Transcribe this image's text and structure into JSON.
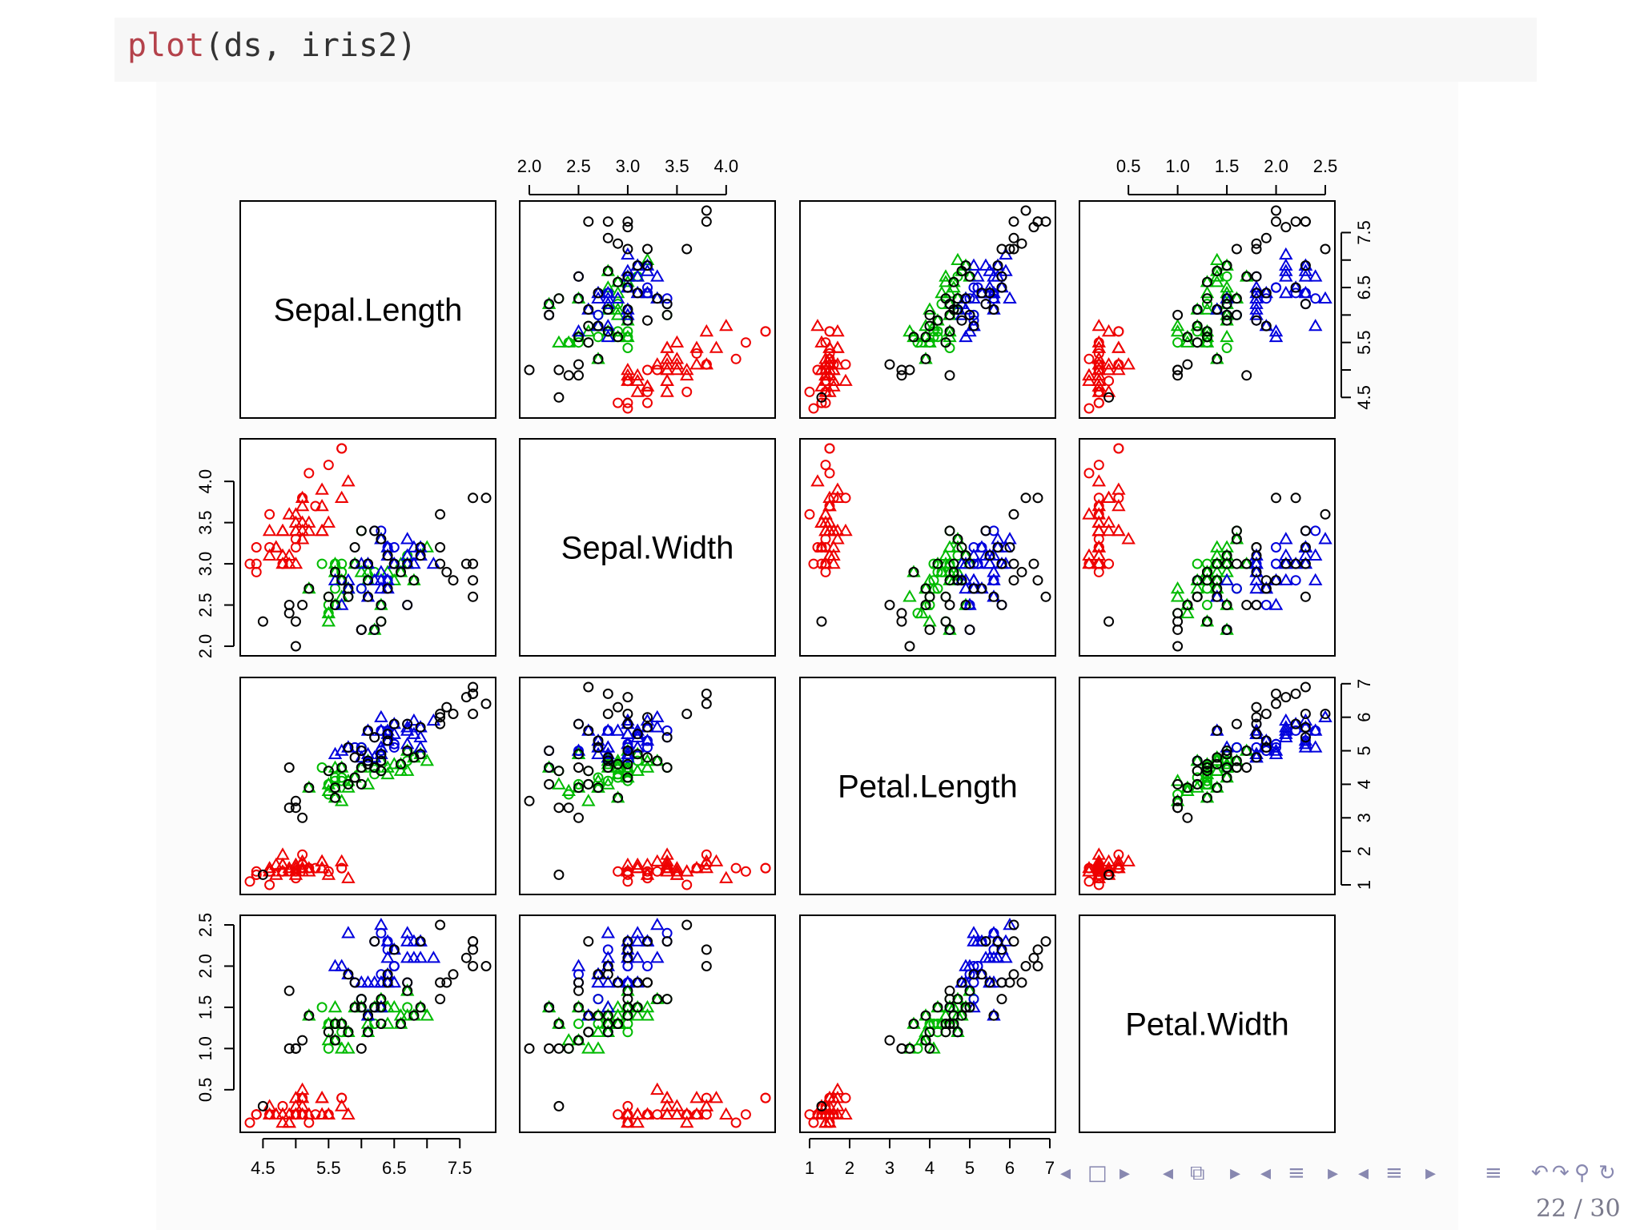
{
  "code": {
    "function": "plot",
    "args": "(ds, iris2)"
  },
  "colors": {
    "black": "#000000",
    "red": "#ee0000",
    "green": "#00bb00",
    "blue": "#0000dd"
  },
  "footer": {
    "page": "22 / 30",
    "nav": [
      "◂",
      "□",
      "▸",
      "◂",
      "⧉",
      "▸",
      "◂",
      "≡",
      "▸",
      "◂",
      "≡",
      "▸",
      "≡",
      "↶",
      "↷",
      "⚲",
      "↻"
    ]
  },
  "chart_data": {
    "type": "scatter",
    "variables": [
      "Sepal.Length",
      "Sepal.Width",
      "Petal.Length",
      "Petal.Width"
    ],
    "ranges": {
      "Sepal.Length": [
        4.3,
        7.9
      ],
      "Sepal.Width": [
        2.0,
        4.4
      ],
      "Petal.Length": [
        1.0,
        6.9
      ],
      "Petal.Width": [
        0.1,
        2.5
      ]
    },
    "ticks": {
      "Sepal.Length": [
        "4.5",
        "5.5",
        "6.5",
        "7.5"
      ],
      "Sepal.Width": [
        "2.0",
        "2.5",
        "3.0",
        "3.5",
        "4.0"
      ],
      "Petal.Length": [
        "1",
        "2",
        "3",
        "4",
        "5",
        "6",
        "7"
      ],
      "Petal.Width": [
        "0.5",
        "1.0",
        "1.5",
        "2.0",
        "2.5"
      ]
    },
    "ticks_at": {
      "Sepal.Length": [
        4.5,
        5.0,
        5.5,
        6.0,
        6.5,
        7.0,
        7.5
      ],
      "Sepal.Width": [
        2.0,
        2.5,
        3.0,
        3.5,
        4.0
      ],
      "Petal.Length": [
        1,
        2,
        3,
        4,
        5,
        6,
        7
      ],
      "Petal.Width": [
        0.5,
        1.0,
        1.5,
        2.0,
        2.5
      ]
    },
    "groups": [
      {
        "color": "#ee0000",
        "pch": "triangle",
        "points": [
          [
            5.1,
            3.5,
            1.4,
            0.2
          ],
          [
            4.9,
            3.0,
            1.4,
            0.2
          ],
          [
            4.7,
            3.2,
            1.3,
            0.2
          ],
          [
            4.6,
            3.1,
            1.5,
            0.2
          ],
          [
            5.0,
            3.6,
            1.4,
            0.2
          ],
          [
            5.4,
            3.9,
            1.7,
            0.4
          ],
          [
            4.6,
            3.4,
            1.4,
            0.3
          ],
          [
            5.0,
            3.4,
            1.5,
            0.2
          ],
          [
            4.9,
            3.1,
            1.5,
            0.1
          ],
          [
            5.4,
            3.7,
            1.5,
            0.2
          ],
          [
            4.8,
            3.4,
            1.6,
            0.2
          ],
          [
            4.8,
            3.0,
            1.4,
            0.1
          ],
          [
            5.8,
            4.0,
            1.2,
            0.2
          ],
          [
            5.7,
            3.8,
            1.7,
            0.3
          ],
          [
            5.1,
            3.8,
            1.5,
            0.3
          ],
          [
            5.4,
            3.4,
            1.7,
            0.2
          ],
          [
            5.1,
            3.7,
            1.5,
            0.4
          ],
          [
            5.1,
            3.3,
            1.7,
            0.5
          ],
          [
            4.8,
            3.4,
            1.9,
            0.2
          ],
          [
            5.0,
            3.0,
            1.6,
            0.2
          ],
          [
            5.0,
            3.4,
            1.6,
            0.4
          ],
          [
            5.2,
            3.5,
            1.5,
            0.2
          ],
          [
            5.2,
            3.4,
            1.4,
            0.2
          ],
          [
            4.7,
            3.2,
            1.6,
            0.2
          ],
          [
            4.8,
            3.1,
            1.6,
            0.2
          ],
          [
            5.4,
            3.4,
            1.5,
            0.4
          ],
          [
            5.5,
            3.5,
            1.3,
            0.2
          ],
          [
            4.9,
            3.6,
            1.4,
            0.1
          ],
          [
            5.1,
            3.4,
            1.5,
            0.2
          ],
          [
            5.0,
            3.5,
            1.3,
            0.3
          ]
        ]
      },
      {
        "color": "#ee0000",
        "pch": "circle",
        "points": [
          [
            4.4,
            2.9,
            1.4,
            0.2
          ],
          [
            4.3,
            3.0,
            1.1,
            0.1
          ],
          [
            5.7,
            4.4,
            1.5,
            0.4
          ],
          [
            5.2,
            4.1,
            1.5,
            0.1
          ],
          [
            5.5,
            4.2,
            1.4,
            0.2
          ],
          [
            4.4,
            3.0,
            1.3,
            0.2
          ],
          [
            4.4,
            3.2,
            1.3,
            0.2
          ],
          [
            5.1,
            3.8,
            1.9,
            0.4
          ],
          [
            4.6,
            3.2,
            1.4,
            0.2
          ],
          [
            5.3,
            3.7,
            1.5,
            0.2
          ],
          [
            5.0,
            3.3,
            1.4,
            0.2
          ],
          [
            4.8,
            3.0,
            1.4,
            0.3
          ],
          [
            5.1,
            3.8,
            1.6,
            0.2
          ],
          [
            4.6,
            3.6,
            1.0,
            0.2
          ],
          [
            5.0,
            3.2,
            1.2,
            0.2
          ],
          [
            5.7,
            4.4,
            1.5,
            0.4
          ]
        ]
      },
      {
        "color": "#00bb00",
        "pch": "triangle",
        "points": [
          [
            7.0,
            3.2,
            4.7,
            1.4
          ],
          [
            6.4,
            3.2,
            4.5,
            1.5
          ],
          [
            6.9,
            3.1,
            4.9,
            1.5
          ],
          [
            5.5,
            2.3,
            4.0,
            1.3
          ],
          [
            6.5,
            2.8,
            4.6,
            1.5
          ],
          [
            5.7,
            2.8,
            4.5,
            1.3
          ],
          [
            6.3,
            3.3,
            4.7,
            1.6
          ],
          [
            6.6,
            2.9,
            4.6,
            1.3
          ],
          [
            5.2,
            2.7,
            3.9,
            1.4
          ],
          [
            5.9,
            3.0,
            4.2,
            1.5
          ],
          [
            6.1,
            2.9,
            4.7,
            1.4
          ],
          [
            5.6,
            2.9,
            3.6,
            1.3
          ],
          [
            6.7,
            3.1,
            4.4,
            1.4
          ],
          [
            5.6,
            3.0,
            4.5,
            1.5
          ],
          [
            5.8,
            2.7,
            4.1,
            1.0
          ],
          [
            6.2,
            2.2,
            4.5,
            1.5
          ],
          [
            5.6,
            2.5,
            3.9,
            1.1
          ],
          [
            6.1,
            2.8,
            4.0,
            1.3
          ],
          [
            6.3,
            2.5,
            4.9,
            1.5
          ],
          [
            6.1,
            2.8,
            4.7,
            1.2
          ],
          [
            6.4,
            2.9,
            4.3,
            1.3
          ],
          [
            6.6,
            3.0,
            4.4,
            1.4
          ],
          [
            6.8,
            2.8,
            4.8,
            1.4
          ],
          [
            6.7,
            3.0,
            5.0,
            1.7
          ],
          [
            6.0,
            2.9,
            4.5,
            1.5
          ],
          [
            5.7,
            2.6,
            3.5,
            1.0
          ],
          [
            5.5,
            2.4,
            3.8,
            1.1
          ],
          [
            5.8,
            2.7,
            3.9,
            1.2
          ]
        ]
      },
      {
        "color": "#00bb00",
        "pch": "circle",
        "points": [
          [
            5.5,
            2.4,
            3.7,
            1.0
          ],
          [
            6.0,
            2.7,
            5.1,
            1.6
          ],
          [
            5.4,
            3.0,
            4.5,
            1.5
          ],
          [
            6.0,
            3.4,
            4.5,
            1.6
          ],
          [
            6.7,
            3.1,
            4.7,
            1.5
          ],
          [
            6.3,
            2.3,
            4.4,
            1.3
          ],
          [
            5.6,
            3.0,
            4.1,
            1.3
          ],
          [
            5.5,
            2.5,
            4.0,
            1.3
          ],
          [
            5.5,
            2.6,
            4.4,
            1.2
          ],
          [
            6.1,
            3.0,
            4.6,
            1.4
          ],
          [
            5.8,
            2.6,
            4.0,
            1.2
          ],
          [
            5.6,
            2.7,
            4.2,
            1.3
          ],
          [
            5.7,
            3.0,
            4.2,
            1.2
          ],
          [
            5.7,
            2.9,
            4.2,
            1.3
          ],
          [
            6.2,
            2.9,
            4.3,
            1.3
          ],
          [
            5.7,
            2.8,
            4.1,
            1.3
          ]
        ]
      },
      {
        "color": "#0000dd",
        "pch": "triangle",
        "points": [
          [
            6.3,
            3.3,
            6.0,
            2.5
          ],
          [
            5.8,
            2.7,
            5.1,
            1.9
          ],
          [
            7.1,
            3.0,
            5.9,
            2.1
          ],
          [
            6.3,
            2.9,
            5.6,
            1.8
          ],
          [
            6.5,
            3.0,
            5.8,
            2.2
          ],
          [
            6.4,
            2.7,
            5.3,
            1.9
          ],
          [
            6.8,
            3.0,
            5.5,
            2.1
          ],
          [
            5.7,
            2.5,
            5.0,
            2.0
          ],
          [
            5.8,
            2.8,
            5.1,
            2.4
          ],
          [
            6.4,
            3.2,
            5.3,
            2.3
          ],
          [
            6.5,
            3.0,
            5.5,
            1.8
          ],
          [
            6.9,
            3.2,
            5.7,
            2.3
          ],
          [
            5.6,
            2.8,
            4.9,
            2.0
          ],
          [
            6.3,
            2.7,
            4.9,
            1.8
          ],
          [
            6.7,
            3.3,
            5.7,
            2.1
          ],
          [
            6.2,
            2.8,
            4.8,
            1.8
          ],
          [
            6.1,
            3.0,
            4.9,
            1.8
          ],
          [
            6.4,
            2.8,
            5.6,
            2.1
          ],
          [
            6.3,
            2.8,
            5.1,
            1.5
          ],
          [
            6.1,
            2.6,
            5.6,
            1.4
          ],
          [
            6.4,
            3.1,
            5.5,
            1.8
          ],
          [
            6.0,
            3.0,
            4.8,
            1.8
          ],
          [
            6.9,
            3.1,
            5.4,
            2.1
          ],
          [
            6.7,
            3.1,
            5.6,
            2.4
          ],
          [
            6.9,
            3.1,
            5.1,
            2.3
          ],
          [
            6.8,
            3.2,
            5.9,
            2.3
          ],
          [
            6.7,
            3.0,
            5.2,
            2.3
          ]
        ]
      },
      {
        "color": "#0000dd",
        "pch": "circle",
        "points": [
          [
            6.5,
            3.2,
            5.1,
            2.0
          ],
          [
            6.4,
            2.8,
            5.6,
            2.2
          ],
          [
            6.5,
            3.0,
            5.2,
            2.0
          ],
          [
            6.2,
            3.4,
            5.4,
            2.3
          ],
          [
            5.9,
            3.0,
            5.1,
            1.8
          ],
          [
            6.3,
            3.4,
            5.6,
            2.4
          ],
          [
            6.0,
            2.2,
            5.0,
            1.5
          ],
          [
            6.3,
            2.5,
            5.0,
            1.9
          ],
          [
            6.5,
            3.0,
            5.2,
            2.0
          ],
          [
            6.1,
            2.8,
            4.7,
            1.2
          ],
          [
            6.0,
            2.7,
            5.1,
            1.6
          ],
          [
            6.7,
            2.5,
            5.8,
            1.8
          ],
          [
            6.2,
            2.2,
            4.5,
            1.5
          ],
          [
            6.4,
            3.2,
            5.3,
            2.3
          ]
        ]
      },
      {
        "color": "#000000",
        "pch": "circle",
        "points": [
          [
            7.6,
            3.0,
            6.6,
            2.1
          ],
          [
            4.9,
            2.5,
            4.5,
            1.7
          ],
          [
            7.3,
            2.9,
            6.3,
            1.8
          ],
          [
            7.2,
            3.6,
            6.1,
            2.5
          ],
          [
            7.7,
            3.8,
            6.7,
            2.2
          ],
          [
            7.7,
            2.6,
            6.9,
            2.3
          ],
          [
            7.7,
            2.8,
            6.7,
            2.0
          ],
          [
            7.2,
            3.2,
            6.0,
            1.8
          ],
          [
            7.2,
            3.0,
            5.8,
            1.6
          ],
          [
            7.4,
            2.8,
            6.1,
            1.9
          ],
          [
            7.9,
            3.8,
            6.4,
            2.0
          ],
          [
            7.7,
            3.0,
            6.1,
            2.3
          ],
          [
            6.3,
            3.3,
            4.7,
            1.6
          ],
          [
            4.9,
            2.4,
            3.3,
            1.0
          ],
          [
            5.0,
            2.0,
            3.5,
            1.0
          ],
          [
            5.9,
            3.2,
            4.8,
            1.8
          ],
          [
            6.0,
            2.2,
            4.0,
            1.0
          ],
          [
            5.0,
            2.3,
            3.3,
            1.0
          ],
          [
            5.1,
            2.5,
            3.0,
            1.1
          ],
          [
            6.7,
            3.0,
            5.0,
            1.7
          ],
          [
            6.2,
            3.4,
            5.4,
            2.3
          ],
          [
            5.8,
            2.7,
            5.1,
            1.9
          ],
          [
            4.5,
            2.3,
            1.3,
            0.3
          ],
          [
            6.1,
            2.8,
            4.7,
            1.2
          ],
          [
            6.5,
            3.0,
            5.8,
            2.2
          ],
          [
            6.9,
            3.2,
            5.7,
            2.3
          ],
          [
            5.9,
            3.0,
            4.2,
            1.5
          ],
          [
            6.3,
            2.5,
            4.9,
            1.5
          ],
          [
            6.0,
            2.2,
            5.0,
            1.5
          ],
          [
            6.1,
            2.6,
            5.6,
            1.4
          ],
          [
            6.4,
            3.1,
            5.5,
            1.8
          ],
          [
            6.0,
            3.4,
            4.5,
            1.6
          ],
          [
            6.3,
            2.3,
            4.4,
            1.3
          ],
          [
            5.6,
            2.9,
            3.6,
            1.3
          ],
          [
            6.2,
            2.2,
            4.5,
            1.5
          ],
          [
            6.7,
            2.5,
            5.8,
            1.8
          ],
          [
            5.5,
            2.6,
            4.4,
            1.2
          ],
          [
            6.1,
            3.0,
            4.6,
            1.4
          ],
          [
            5.2,
            2.7,
            3.9,
            1.4
          ],
          [
            6.6,
            2.9,
            4.6,
            1.3
          ],
          [
            6.9,
            3.1,
            4.9,
            1.5
          ],
          [
            5.8,
            2.6,
            4.0,
            1.2
          ],
          [
            5.7,
            2.8,
            4.5,
            1.3
          ],
          [
            6.4,
            2.7,
            5.3,
            1.9
          ],
          [
            5.6,
            2.5,
            3.9,
            1.1
          ],
          [
            6.8,
            2.8,
            4.8,
            1.4
          ]
        ]
      }
    ]
  }
}
